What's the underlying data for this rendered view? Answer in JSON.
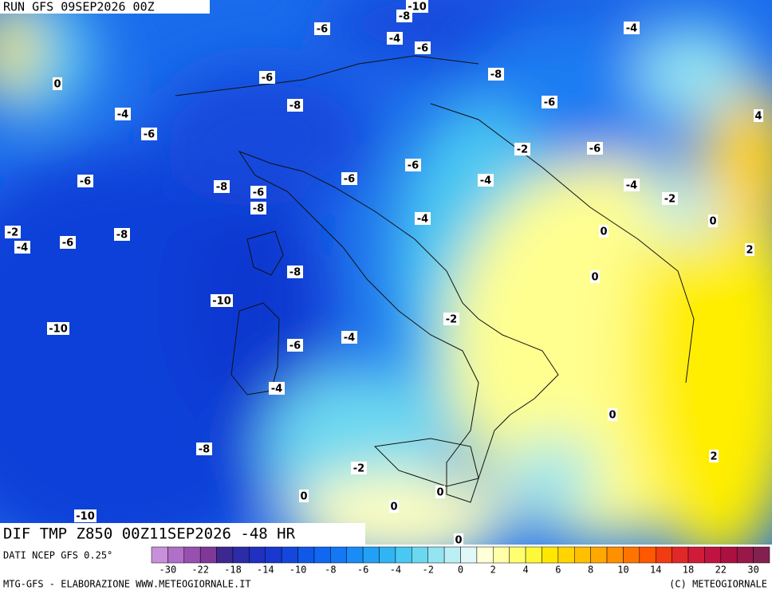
{
  "header": {
    "run": "RUN GFS 09SEP2026 00Z"
  },
  "map": {
    "field": "DIF TMP Z850 00Z11SEP2026 -48 HR",
    "contour_labels": [
      -10,
      -8,
      -6,
      -4,
      -6,
      -4,
      0,
      -6,
      -8,
      -8,
      -6,
      -4,
      4,
      -6,
      -2,
      -6,
      -6,
      -4,
      -6,
      -8,
      -6,
      -6,
      -4,
      -2,
      -8,
      -4,
      0,
      -2,
      -4,
      -6,
      -8,
      0,
      2,
      -8,
      0,
      -10,
      -2,
      -10,
      -4,
      -6,
      -4,
      0,
      -8,
      2,
      -2,
      0,
      0,
      0,
      -10,
      0
    ]
  },
  "colorbar": {
    "source": "DATI NCEP GFS 0.25°",
    "colors": [
      "#c890d8",
      "#b070c8",
      "#9850b0",
      "#803898",
      "#3c2890",
      "#2c2ca8",
      "#2030c0",
      "#1838d0",
      "#1448dc",
      "#1058e8",
      "#1068f0",
      "#1478f4",
      "#1a8cf6",
      "#22a0f6",
      "#30b4f4",
      "#48c8f2",
      "#6cd8f0",
      "#94e4f2",
      "#bceff4",
      "#e0f8f8",
      "#ffffd8",
      "#ffffa8",
      "#ffff70",
      "#fff838",
      "#ffe800",
      "#ffd400",
      "#ffc000",
      "#ffa800",
      "#ff9000",
      "#ff7400",
      "#ff5800",
      "#f03c10",
      "#e02828",
      "#d01c38",
      "#c01440",
      "#ac1040",
      "#981848",
      "#842050"
    ],
    "ticks": [
      -30,
      -22,
      -18,
      -14,
      -10,
      -8,
      -6,
      -4,
      -2,
      0,
      2,
      4,
      6,
      8,
      10,
      14,
      18,
      22,
      30
    ]
  },
  "footer": {
    "credit": "MTG-GFS - ELABORAZIONE WWW.METEOGIORNALE.IT",
    "copyright": "(C) METEOGIORNALE"
  }
}
